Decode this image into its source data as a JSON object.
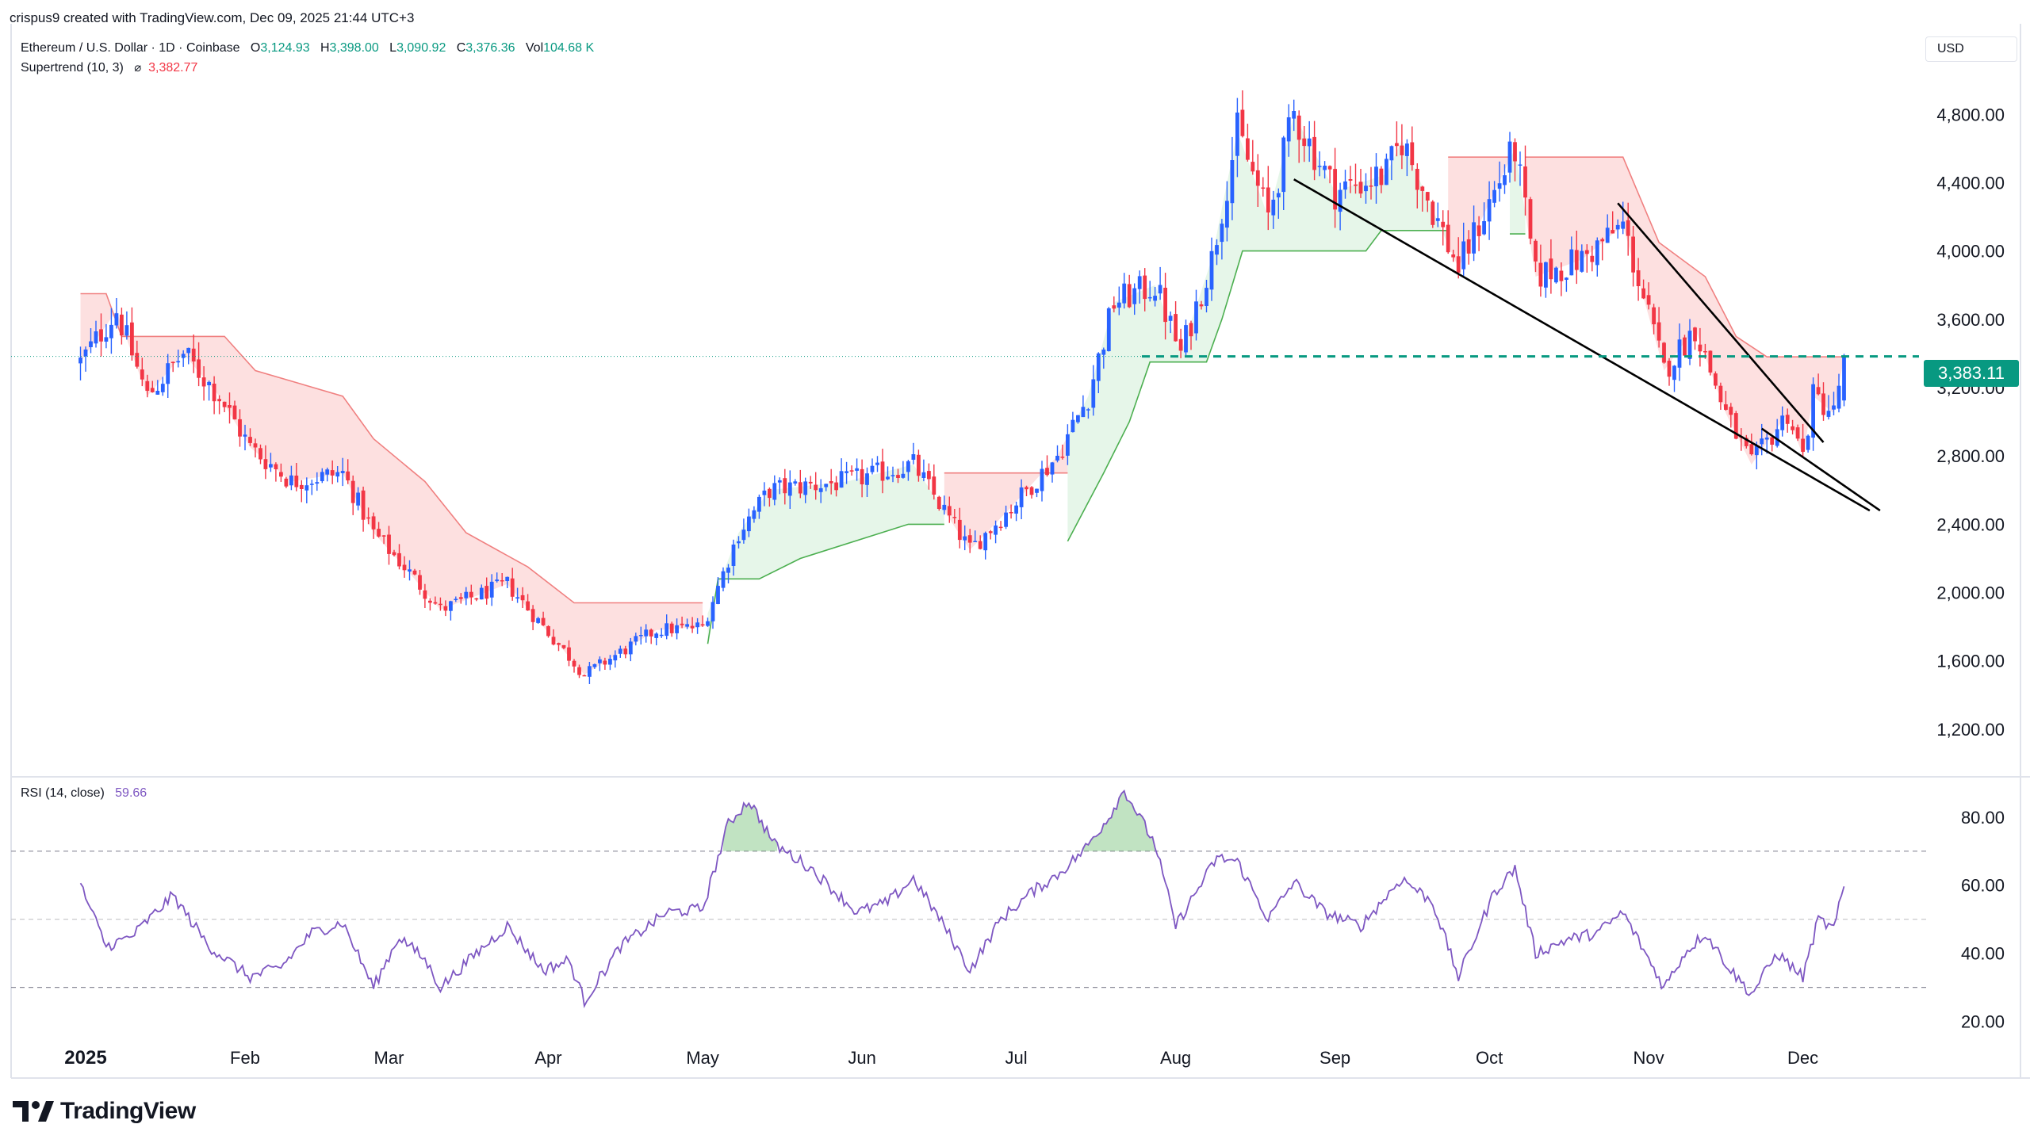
{
  "header": {
    "creator": "crispus9 created with TradingView.com, Dec 09, 2025 21:44 UTC+3"
  },
  "symbol": {
    "name": "Ethereum / U.S. Dollar · 1D · Coinbase",
    "open_label": "O",
    "open": "3,124.93",
    "high_label": "H",
    "high": "3,398.00",
    "low_label": "L",
    "low": "3,090.92",
    "close_label": "C",
    "close": "3,376.36",
    "vol_label": "Vol",
    "vol": "104.68 K"
  },
  "supertrend": {
    "label": "Supertrend (10, 3)",
    "icon": "eye-off-icon",
    "value": "3,382.77"
  },
  "rsi": {
    "label": "RSI (14, close)",
    "value": "59.66"
  },
  "currency": "USD",
  "last_price_tag": "3,383.11",
  "brand": "TradingView",
  "colors": {
    "up": "#2962ff",
    "down": "#f23645",
    "st_up_fill": "#e6f6e9",
    "st_down_fill": "#fde0e0",
    "st_up_line": "#4caf50",
    "st_down_line": "#f08080",
    "rsi": "#7e57c2",
    "accent": "#089981"
  },
  "chart_data": {
    "type": "candlestick",
    "symbol": "ETH/USD",
    "x_tick_labels": [
      "2025",
      "Feb",
      "Mar",
      "Apr",
      "May",
      "Jun",
      "Jul",
      "Aug",
      "Sep",
      "Oct",
      "Nov",
      "Dec"
    ],
    "x_ticks": [
      "2025-01-01",
      "2025-02-01",
      "2025-03-01",
      "2025-04-01",
      "2025-05-01",
      "2025-06-01",
      "2025-07-01",
      "2025-08-01",
      "2025-09-01",
      "2025-10-01",
      "2025-11-01",
      "2025-12-01"
    ],
    "price_axis": {
      "ticks": [
        1200,
        1600,
        2000,
        2400,
        2800,
        3200,
        3600,
        4000,
        4400,
        4800
      ],
      "range": [
        1000,
        5000
      ]
    },
    "rsi_axis": {
      "ticks": [
        20,
        40,
        60,
        80
      ],
      "range": [
        15,
        95
      ],
      "bands": [
        30,
        50,
        70
      ]
    },
    "price_anchors": [
      [
        "2024-12-31",
        3350
      ],
      [
        "2025-01-07",
        3650
      ],
      [
        "2025-01-13",
        3150
      ],
      [
        "2025-01-20",
        3400
      ],
      [
        "2025-01-27",
        3150
      ],
      [
        "2025-02-02",
        2850
      ],
      [
        "2025-02-10",
        2650
      ],
      [
        "2025-02-20",
        2700
      ],
      [
        "2025-02-26",
        2350
      ],
      [
        "2025-03-04",
        2150
      ],
      [
        "2025-03-11",
        1900
      ],
      [
        "2025-03-24",
        2050
      ],
      [
        "2025-03-31",
        1800
      ],
      [
        "2025-04-08",
        1520
      ],
      [
        "2025-04-22",
        1780
      ],
      [
        "2025-05-01",
        1800
      ],
      [
        "2025-05-08",
        2350
      ],
      [
        "2025-05-14",
        2600
      ],
      [
        "2025-05-29",
        2650
      ],
      [
        "2025-06-11",
        2750
      ],
      [
        "2025-06-22",
        2250
      ],
      [
        "2025-06-30",
        2500
      ],
      [
        "2025-07-09",
        2800
      ],
      [
        "2025-07-15",
        3150
      ],
      [
        "2025-07-20",
        3700
      ],
      [
        "2025-07-28",
        3800
      ],
      [
        "2025-08-02",
        3400
      ],
      [
        "2025-08-08",
        3950
      ],
      [
        "2025-08-13",
        4700
      ],
      [
        "2025-08-19",
        4200
      ],
      [
        "2025-08-24",
        4800
      ],
      [
        "2025-09-01",
        4350
      ],
      [
        "2025-09-11",
        4450
      ],
      [
        "2025-09-14",
        4650
      ],
      [
        "2025-09-25",
        3900
      ],
      [
        "2025-10-06",
        4600
      ],
      [
        "2025-10-10",
        3850
      ],
      [
        "2025-10-19",
        3950
      ],
      [
        "2025-10-27",
        4150
      ],
      [
        "2025-11-04",
        3300
      ],
      [
        "2025-11-10",
        3550
      ],
      [
        "2025-11-16",
        3050
      ],
      [
        "2025-11-21",
        2750
      ],
      [
        "2025-11-28",
        3050
      ],
      [
        "2025-12-01",
        2800
      ],
      [
        "2025-12-03",
        3150
      ],
      [
        "2025-12-07",
        3050
      ],
      [
        "2025-12-09",
        3376
      ]
    ],
    "supertrend_segments": [
      {
        "trend": "down",
        "points": [
          [
            "2024-12-31",
            3750
          ],
          [
            "2025-01-05",
            3750
          ],
          [
            "2025-01-08",
            3500
          ],
          [
            "2025-01-28",
            3500
          ],
          [
            "2025-02-03",
            3300
          ],
          [
            "2025-02-20",
            3150
          ],
          [
            "2025-02-26",
            2900
          ],
          [
            "2025-03-08",
            2650
          ],
          [
            "2025-03-16",
            2350
          ],
          [
            "2025-03-28",
            2150
          ],
          [
            "2025-04-06",
            1940
          ],
          [
            "2025-05-01",
            1940
          ]
        ]
      },
      {
        "trend": "up",
        "points": [
          [
            "2025-05-02",
            1700
          ],
          [
            "2025-05-04",
            2080
          ],
          [
            "2025-05-12",
            2080
          ],
          [
            "2025-05-20",
            2200
          ],
          [
            "2025-06-10",
            2400
          ],
          [
            "2025-06-17",
            2400
          ]
        ]
      },
      {
        "trend": "down",
        "points": [
          [
            "2025-06-17",
            2700
          ],
          [
            "2025-07-11",
            2700
          ]
        ]
      },
      {
        "trend": "up",
        "points": [
          [
            "2025-07-11",
            2300
          ],
          [
            "2025-07-18",
            2700
          ],
          [
            "2025-07-23",
            3000
          ],
          [
            "2025-07-27",
            3350
          ],
          [
            "2025-08-07",
            3350
          ],
          [
            "2025-08-10",
            3600
          ],
          [
            "2025-08-14",
            4000
          ],
          [
            "2025-09-07",
            4000
          ],
          [
            "2025-09-10",
            4120
          ],
          [
            "2025-09-23",
            4120
          ]
        ]
      },
      {
        "trend": "down",
        "points": [
          [
            "2025-09-23",
            4550
          ],
          [
            "2025-10-05",
            4550
          ]
        ]
      },
      {
        "trend": "up",
        "points": [
          [
            "2025-10-05",
            4100
          ],
          [
            "2025-10-08",
            4100
          ]
        ]
      },
      {
        "trend": "down",
        "points": [
          [
            "2025-10-08",
            4550
          ],
          [
            "2025-10-27",
            4550
          ],
          [
            "2025-11-03",
            4050
          ],
          [
            "2025-11-12",
            3850
          ],
          [
            "2025-11-18",
            3500
          ],
          [
            "2025-11-24",
            3380
          ],
          [
            "2025-12-09",
            3380
          ]
        ]
      }
    ],
    "last_price_line": 3383.11,
    "trendlines": [
      {
        "from": [
          "2025-08-24",
          4420
        ],
        "to": [
          "2025-12-14",
          2480
        ]
      },
      {
        "from": [
          "2025-10-26",
          4280
        ],
        "to": [
          "2025-12-05",
          2880
        ]
      },
      {
        "from": [
          "2025-11-23",
          2960
        ],
        "to": [
          "2025-12-16",
          2480
        ]
      }
    ],
    "rsi_anchors": [
      [
        "2024-12-31",
        60
      ],
      [
        "2025-01-05",
        42
      ],
      [
        "2025-01-10",
        45
      ],
      [
        "2025-01-18",
        57
      ],
      [
        "2025-01-25",
        42
      ],
      [
        "2025-02-02",
        33
      ],
      [
        "2025-02-08",
        36
      ],
      [
        "2025-02-14",
        46
      ],
      [
        "2025-02-20",
        49
      ],
      [
        "2025-02-26",
        30
      ],
      [
        "2025-03-03",
        45
      ],
      [
        "2025-03-08",
        38
      ],
      [
        "2025-03-11",
        30
      ],
      [
        "2025-03-18",
        40
      ],
      [
        "2025-03-24",
        48
      ],
      [
        "2025-03-31",
        35
      ],
      [
        "2025-04-05",
        38
      ],
      [
        "2025-04-08",
        26
      ],
      [
        "2025-04-15",
        42
      ],
      [
        "2025-04-24",
        52
      ],
      [
        "2025-05-01",
        53
      ],
      [
        "2025-05-06",
        78
      ],
      [
        "2025-05-10",
        85
      ],
      [
        "2025-05-15",
        72
      ],
      [
        "2025-05-22",
        65
      ],
      [
        "2025-05-31",
        52
      ],
      [
        "2025-06-06",
        55
      ],
      [
        "2025-06-11",
        62
      ],
      [
        "2025-06-17",
        48
      ],
      [
        "2025-06-22",
        35
      ],
      [
        "2025-06-28",
        50
      ],
      [
        "2025-07-04",
        58
      ],
      [
        "2025-07-09",
        63
      ],
      [
        "2025-07-14",
        70
      ],
      [
        "2025-07-19",
        80
      ],
      [
        "2025-07-22",
        88
      ],
      [
        "2025-07-28",
        72
      ],
      [
        "2025-08-01",
        48
      ],
      [
        "2025-08-05",
        58
      ],
      [
        "2025-08-09",
        68
      ],
      [
        "2025-08-13",
        67
      ],
      [
        "2025-08-19",
        50
      ],
      [
        "2025-08-24",
        61
      ],
      [
        "2025-08-30",
        52
      ],
      [
        "2025-09-06",
        48
      ],
      [
        "2025-09-14",
        62
      ],
      [
        "2025-09-20",
        55
      ],
      [
        "2025-09-25",
        33
      ],
      [
        "2025-10-02",
        58
      ],
      [
        "2025-10-06",
        65
      ],
      [
        "2025-10-10",
        40
      ],
      [
        "2025-10-16",
        44
      ],
      [
        "2025-10-22",
        46
      ],
      [
        "2025-10-27",
        52
      ],
      [
        "2025-11-04",
        30
      ],
      [
        "2025-11-08",
        40
      ],
      [
        "2025-11-12",
        46
      ],
      [
        "2025-11-17",
        35
      ],
      [
        "2025-11-21",
        28
      ],
      [
        "2025-11-26",
        40
      ],
      [
        "2025-12-01",
        33
      ],
      [
        "2025-12-04",
        50
      ],
      [
        "2025-12-07",
        47
      ],
      [
        "2025-12-09",
        59.66
      ]
    ],
    "rsi_last": 59.66
  }
}
